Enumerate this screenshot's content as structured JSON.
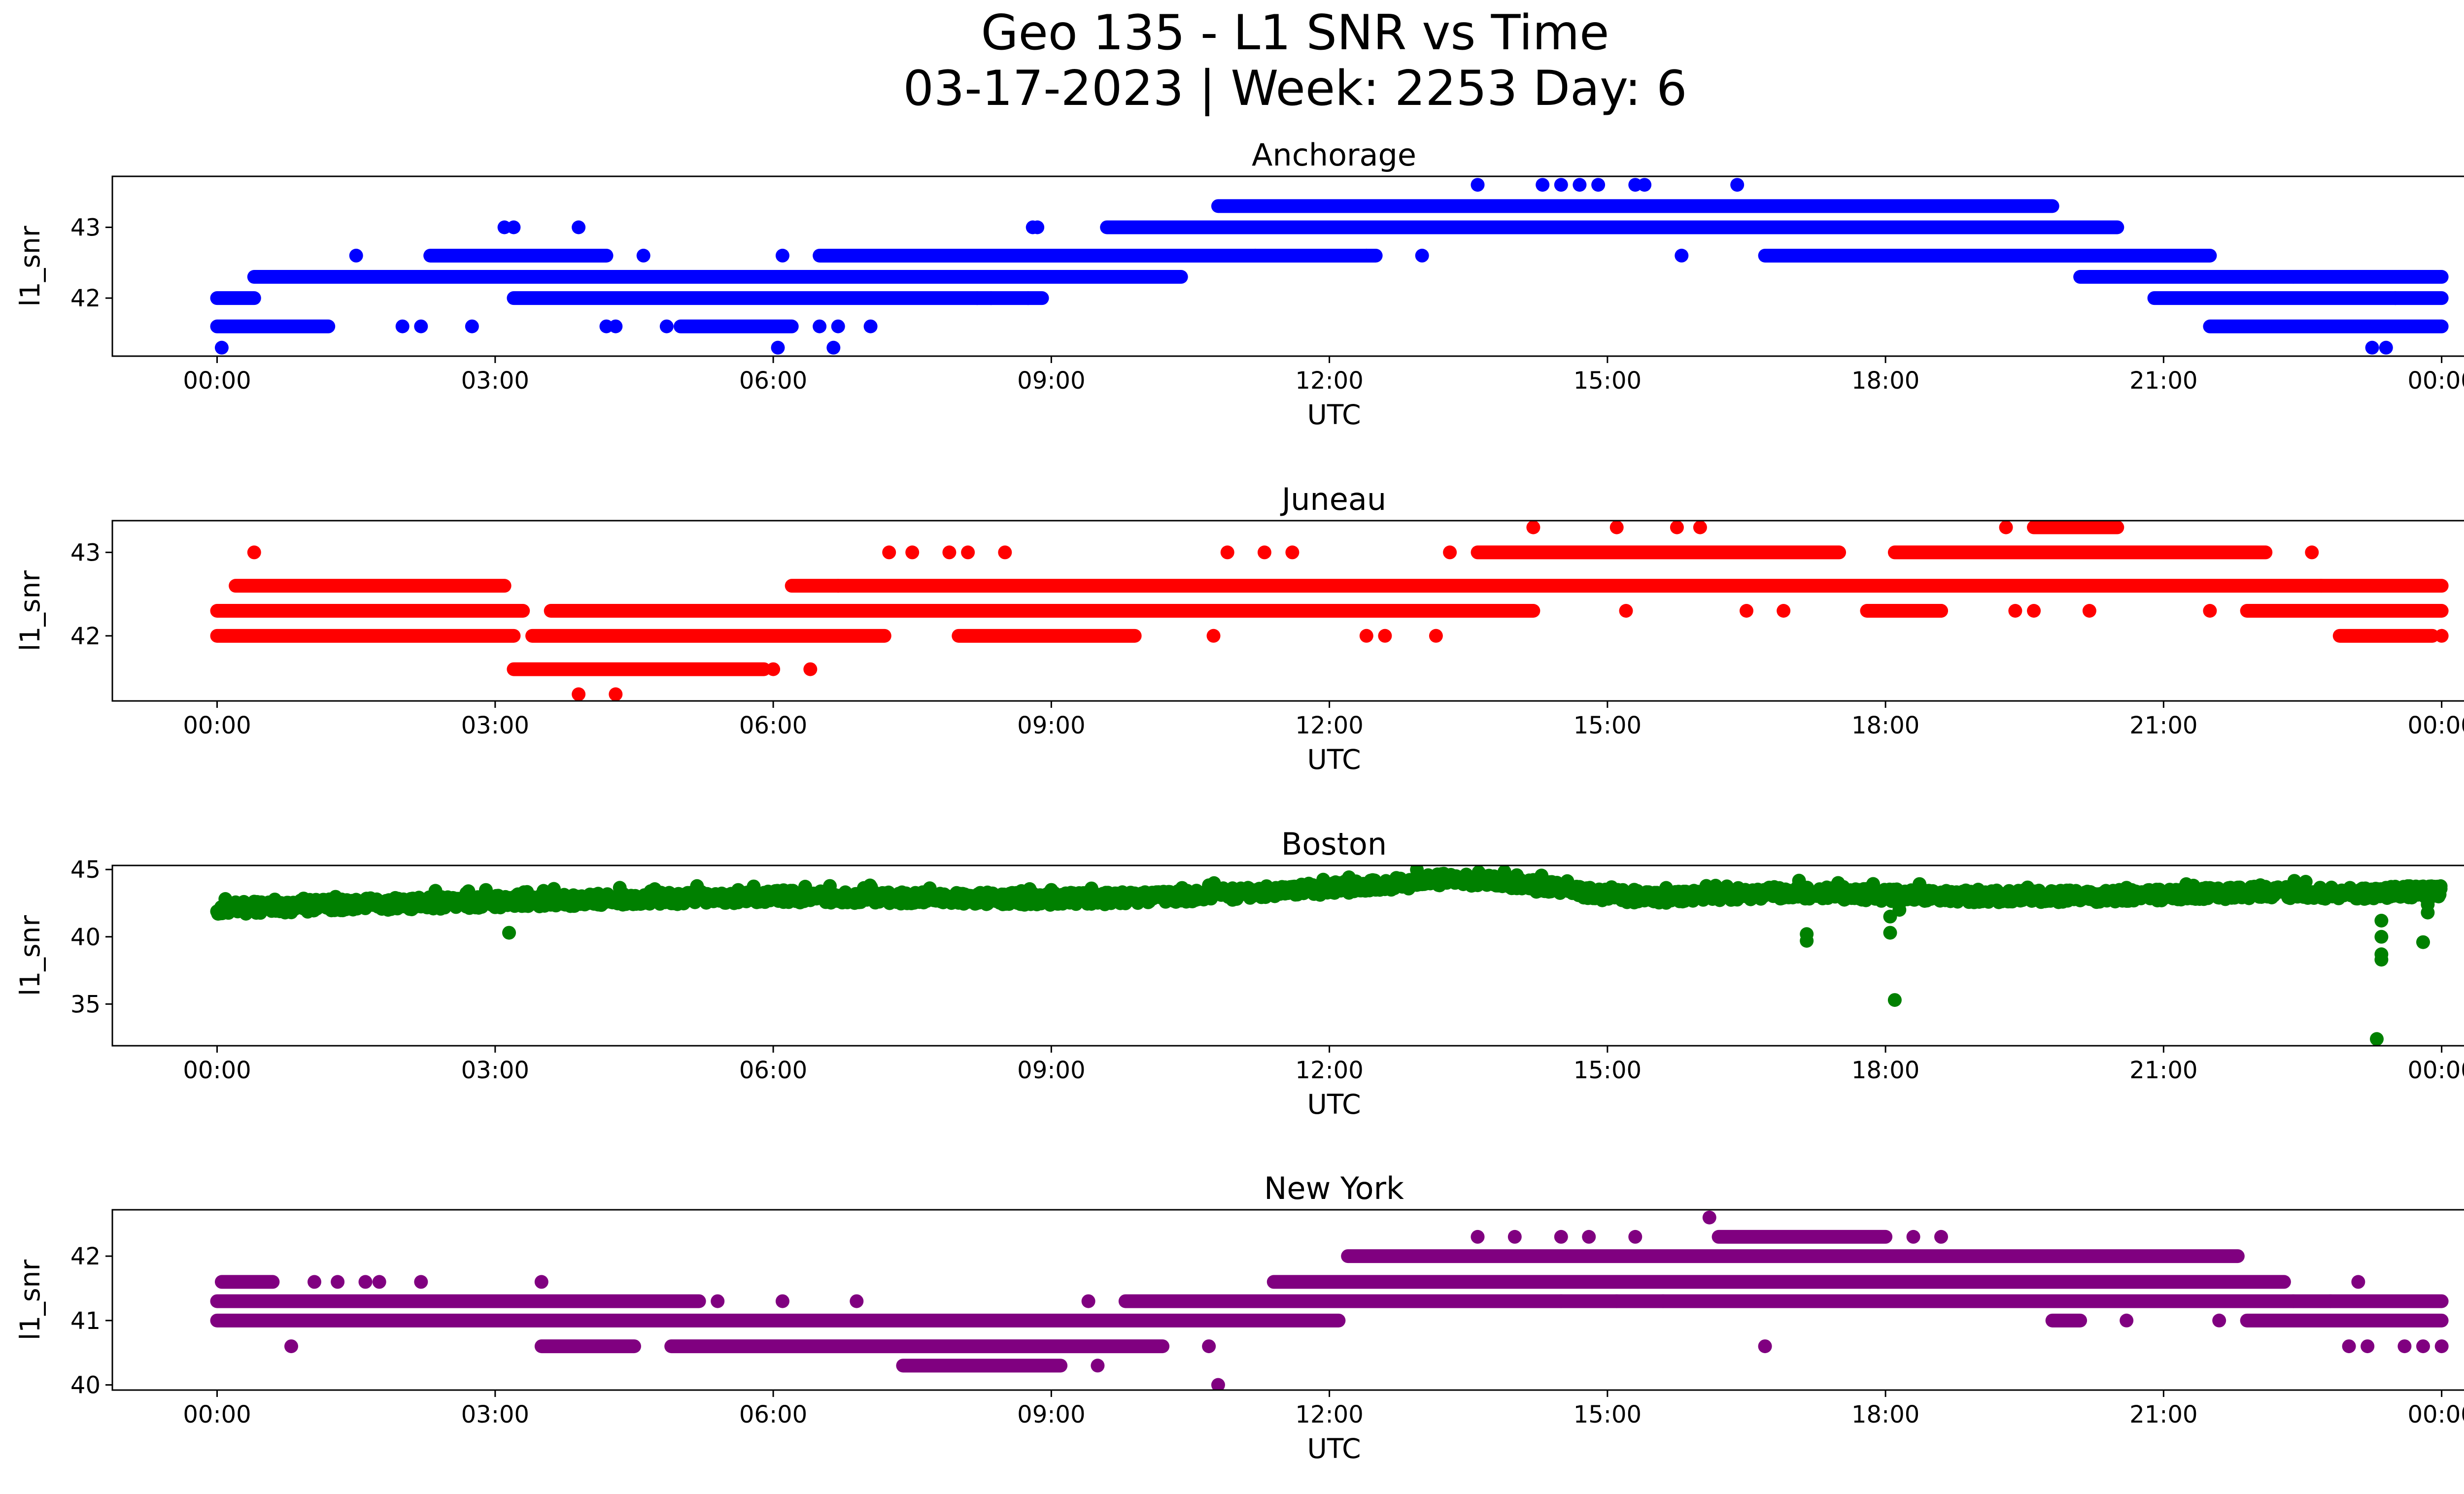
{
  "figure": {
    "title_line1": "Geo 135 - L1 SNR vs Time",
    "title_line2": "03-17-2023 | Week: 2253 Day: 6"
  },
  "chart_data": [
    {
      "type": "scatter",
      "title": "Anchorage",
      "xlabel": "UTC",
      "ylabel": "l1_snr",
      "color": "#0000ff",
      "xlim_hours": [
        -1.13,
        25.23
      ],
      "ylim": [
        41.18,
        43.72
      ],
      "xticks": [
        "00:00",
        "03:00",
        "06:00",
        "09:00",
        "12:00",
        "15:00",
        "18:00",
        "21:00",
        "00:00"
      ],
      "yticks": [
        42,
        43
      ],
      "levels": [
        41.3,
        41.6,
        42.0,
        42.3,
        42.6,
        43.0,
        43.3,
        43.6
      ],
      "bands": [
        [
          41.6,
          0.0,
          1.2
        ],
        [
          42.0,
          0.0,
          0.4
        ],
        [
          42.3,
          0.4,
          3.0
        ],
        [
          42.6,
          2.3,
          4.2
        ],
        [
          42.0,
          3.2,
          8.9
        ],
        [
          42.3,
          3.0,
          10.4
        ],
        [
          42.6,
          6.5,
          11.1
        ],
        [
          41.6,
          5.0,
          6.2
        ],
        [
          43.0,
          9.6,
          10.8
        ],
        [
          43.0,
          10.4,
          20.5
        ],
        [
          43.3,
          10.8,
          19.8
        ],
        [
          42.6,
          11.1,
          12.5
        ],
        [
          42.6,
          16.7,
          21.5
        ],
        [
          42.3,
          20.1,
          24.0
        ],
        [
          42.0,
          20.9,
          24.0
        ],
        [
          41.6,
          21.5,
          24.0
        ]
      ],
      "points": [
        [
          0.05,
          41.3
        ],
        [
          6.05,
          41.3
        ],
        [
          6.65,
          41.3
        ],
        [
          23.25,
          41.3
        ],
        [
          23.4,
          41.3
        ],
        [
          1.5,
          42.6
        ],
        [
          2.0,
          41.6
        ],
        [
          2.2,
          41.6
        ],
        [
          2.75,
          41.6
        ],
        [
          3.1,
          43.0
        ],
        [
          3.2,
          43.0
        ],
        [
          3.9,
          43.0
        ],
        [
          4.2,
          41.6
        ],
        [
          4.3,
          41.6
        ],
        [
          4.6,
          42.6
        ],
        [
          4.85,
          41.6
        ],
        [
          6.5,
          41.6
        ],
        [
          6.7,
          41.6
        ],
        [
          7.05,
          41.6
        ],
        [
          6.1,
          42.6
        ],
        [
          8.8,
          43.0
        ],
        [
          8.85,
          43.0
        ],
        [
          8.2,
          42.0
        ],
        [
          8.35,
          42.0
        ],
        [
          8.75,
          42.0
        ],
        [
          11.2,
          42.6
        ],
        [
          12.4,
          42.6
        ],
        [
          13.0,
          42.6
        ],
        [
          13.6,
          43.6
        ],
        [
          14.3,
          43.6
        ],
        [
          14.5,
          43.6
        ],
        [
          14.7,
          43.6
        ],
        [
          14.9,
          43.6
        ],
        [
          15.3,
          43.6
        ],
        [
          15.4,
          43.6
        ],
        [
          16.4,
          43.6
        ],
        [
          15.8,
          42.6
        ],
        [
          22.2,
          42.3
        ],
        [
          22.4,
          42.3
        ],
        [
          23.0,
          42.3
        ],
        [
          23.5,
          42.0
        ]
      ]
    },
    {
      "type": "scatter",
      "title": "Juneau",
      "xlabel": "UTC",
      "ylabel": "l1_snr",
      "color": "#ff0000",
      "xlim_hours": [
        -1.13,
        25.23
      ],
      "ylim": [
        41.22,
        43.38
      ],
      "xticks": [
        "00:00",
        "03:00",
        "06:00",
        "09:00",
        "12:00",
        "15:00",
        "18:00",
        "21:00",
        "00:00"
      ],
      "yticks": [
        42,
        43
      ],
      "levels": [
        41.3,
        41.6,
        42.0,
        42.3,
        42.6,
        43.0,
        43.3
      ],
      "bands": [
        [
          42.3,
          0.0,
          3.3
        ],
        [
          42.0,
          0.0,
          3.2
        ],
        [
          42.6,
          0.2,
          3.1
        ],
        [
          41.6,
          3.2,
          5.9
        ],
        [
          42.0,
          3.4,
          7.2
        ],
        [
          42.3,
          3.6,
          14.2
        ],
        [
          42.6,
          6.2,
          22.7
        ],
        [
          42.0,
          8.0,
          9.9
        ],
        [
          43.0,
          13.6,
          17.5
        ],
        [
          42.3,
          17.8,
          18.6
        ],
        [
          43.0,
          18.1,
          22.1
        ],
        [
          43.3,
          19.6,
          20.5
        ],
        [
          42.3,
          21.9,
          24.0
        ],
        [
          42.6,
          22.7,
          24.0
        ],
        [
          42.0,
          22.9,
          23.9
        ]
      ],
      "points": [
        [
          0.4,
          43.0
        ],
        [
          3.9,
          41.3
        ],
        [
          4.3,
          41.3
        ],
        [
          6.0,
          41.6
        ],
        [
          6.4,
          41.6
        ],
        [
          6.7,
          42.6
        ],
        [
          7.25,
          43.0
        ],
        [
          7.5,
          43.0
        ],
        [
          7.9,
          43.0
        ],
        [
          8.1,
          43.0
        ],
        [
          8.5,
          43.0
        ],
        [
          10.75,
          42.0
        ],
        [
          10.9,
          43.0
        ],
        [
          11.3,
          43.0
        ],
        [
          11.6,
          43.0
        ],
        [
          12.4,
          42.0
        ],
        [
          12.6,
          42.0
        ],
        [
          13.15,
          42.0
        ],
        [
          13.3,
          43.0
        ],
        [
          14.2,
          43.3
        ],
        [
          15.1,
          43.3
        ],
        [
          15.2,
          42.3
        ],
        [
          15.75,
          43.3
        ],
        [
          16.0,
          43.3
        ],
        [
          16.5,
          42.3
        ],
        [
          16.9,
          42.3
        ],
        [
          18.6,
          42.3
        ],
        [
          19.3,
          43.3
        ],
        [
          19.4,
          42.3
        ],
        [
          19.6,
          42.3
        ],
        [
          20.2,
          42.3
        ],
        [
          21.5,
          42.3
        ],
        [
          22.6,
          43.0
        ],
        [
          24.0,
          42.0
        ]
      ]
    },
    {
      "type": "scatter",
      "title": "Boston",
      "xlabel": "UTC",
      "ylabel": "l1_snr",
      "color": "#008000",
      "xlim_hours": [
        -1.13,
        25.23
      ],
      "ylim": [
        31.9,
        45.3
      ],
      "xticks": [
        "00:00",
        "03:00",
        "06:00",
        "09:00",
        "12:00",
        "15:00",
        "18:00",
        "21:00",
        "00:00"
      ],
      "yticks": [
        35,
        40,
        45
      ],
      "curve": [
        [
          0.0,
          42.1
        ],
        [
          1.5,
          42.4
        ],
        [
          3.0,
          42.6
        ],
        [
          4.5,
          42.8
        ],
        [
          6.0,
          43.0
        ],
        [
          7.5,
          42.9
        ],
        [
          9.0,
          42.8
        ],
        [
          10.0,
          42.9
        ],
        [
          11.0,
          43.2
        ],
        [
          12.0,
          43.6
        ],
        [
          13.0,
          44.1
        ],
        [
          13.3,
          44.3
        ],
        [
          14.0,
          44.0
        ],
        [
          15.0,
          43.1
        ],
        [
          15.5,
          42.9
        ],
        [
          16.0,
          43.1
        ],
        [
          17.0,
          43.3
        ],
        [
          18.0,
          43.1
        ],
        [
          19.0,
          43.0
        ],
        [
          20.0,
          43.0
        ],
        [
          21.0,
          43.1
        ],
        [
          22.0,
          43.3
        ],
        [
          23.0,
          43.2
        ],
        [
          24.0,
          43.4
        ]
      ],
      "points": [
        [
          3.15,
          40.3
        ],
        [
          17.15,
          40.2
        ],
        [
          17.15,
          39.7
        ],
        [
          18.05,
          41.5
        ],
        [
          18.05,
          40.3
        ],
        [
          18.1,
          35.3
        ],
        [
          18.15,
          42.0
        ],
        [
          23.35,
          41.2
        ],
        [
          23.35,
          40.0
        ],
        [
          23.35,
          38.7
        ],
        [
          23.35,
          38.3
        ],
        [
          23.3,
          32.4
        ],
        [
          23.8,
          39.6
        ],
        [
          23.85,
          41.8
        ],
        [
          23.85,
          42.4
        ],
        [
          23.9,
          43.7
        ]
      ]
    },
    {
      "type": "scatter",
      "title": "New York",
      "xlabel": "UTC",
      "ylabel": "l1_snr",
      "color": "#800080",
      "xlim_hours": [
        -1.13,
        25.23
      ],
      "ylim": [
        39.92,
        42.72
      ],
      "xticks": [
        "00:00",
        "03:00",
        "06:00",
        "09:00",
        "12:00",
        "15:00",
        "18:00",
        "21:00",
        "00:00"
      ],
      "yticks": [
        40,
        41,
        42
      ],
      "levels": [
        40.3,
        40.6,
        41.0,
        41.3,
        41.6,
        42.0,
        42.3,
        42.6
      ],
      "bands": [
        [
          41.3,
          0.0,
          5.2
        ],
        [
          41.0,
          0.0,
          12.1
        ],
        [
          41.6,
          0.05,
          0.6
        ],
        [
          40.6,
          3.5,
          4.5
        ],
        [
          40.6,
          4.9,
          10.2
        ],
        [
          41.3,
          9.8,
          24.0
        ],
        [
          40.3,
          7.4,
          9.1
        ],
        [
          41.6,
          11.4,
          22.3
        ],
        [
          42.0,
          12.2,
          21.8
        ],
        [
          42.3,
          16.2,
          18.0
        ],
        [
          41.0,
          19.8,
          20.1
        ],
        [
          41.0,
          21.9,
          24.0
        ]
      ],
      "points": [
        [
          0.8,
          40.6
        ],
        [
          1.05,
          41.6
        ],
        [
          1.3,
          41.6
        ],
        [
          1.6,
          41.6
        ],
        [
          1.75,
          41.6
        ],
        [
          2.2,
          41.6
        ],
        [
          3.5,
          41.6
        ],
        [
          5.4,
          41.3
        ],
        [
          6.1,
          41.3
        ],
        [
          6.9,
          41.3
        ],
        [
          9.5,
          40.3
        ],
        [
          9.4,
          41.3
        ],
        [
          10.7,
          40.6
        ],
        [
          10.8,
          40.0
        ],
        [
          13.6,
          42.3
        ],
        [
          14.0,
          42.3
        ],
        [
          14.5,
          42.3
        ],
        [
          14.8,
          42.3
        ],
        [
          15.3,
          42.3
        ],
        [
          16.1,
          42.6
        ],
        [
          16.7,
          40.6
        ],
        [
          18.3,
          42.3
        ],
        [
          18.6,
          42.3
        ],
        [
          14.5,
          41.3
        ],
        [
          15.1,
          41.3
        ],
        [
          15.6,
          41.3
        ],
        [
          20.6,
          41.0
        ],
        [
          21.6,
          41.0
        ],
        [
          23.0,
          40.6
        ],
        [
          23.2,
          40.6
        ],
        [
          23.6,
          40.6
        ],
        [
          23.8,
          40.6
        ],
        [
          24.0,
          40.6
        ],
        [
          22.4,
          41.3
        ],
        [
          22.8,
          41.3
        ],
        [
          23.1,
          41.6
        ]
      ]
    }
  ]
}
